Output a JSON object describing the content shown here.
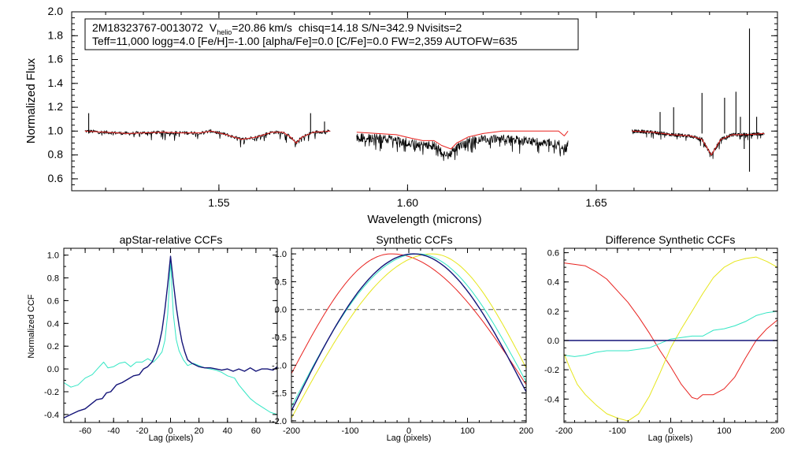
{
  "colors": {
    "black": "#000000",
    "model": "#e8221f",
    "cyan": "#33e6c4",
    "yellow": "#e6e61a",
    "navy": "#141478",
    "dash": "#555555"
  },
  "chart_data": [
    {
      "id": "spectrum",
      "type": "line",
      "title": "",
      "xlabel": "Wavelength (microns)",
      "ylabel": "Normalized Flux",
      "xlim": [
        1.511,
        1.698
      ],
      "ylim": [
        0.5,
        2.0
      ],
      "xticks": [
        1.55,
        1.6,
        1.65
      ],
      "xtick_labels": [
        "1.55",
        "1.60",
        "1.65"
      ],
      "yticks": [
        0.6,
        0.8,
        1.0,
        1.2,
        1.4,
        1.6,
        1.8,
        2.0
      ],
      "ytick_labels": [
        "0.6",
        "0.8",
        "1.0",
        "1.2",
        "1.4",
        "1.6",
        "1.8",
        "2.0"
      ],
      "annotation": {
        "star_id": "2M18323767-0013072",
        "vhelio_prefix": "V",
        "vhelio_sub": "helio",
        "vhelio_value": "=20.86 km/s",
        "stats": "chisq=14.18  S/N=342.9  Nvisits=2",
        "line2": "Teff=11,000 logg=4.0 [Fe/H]=-1.00 [alpha/Fe]=0.0 [C/Fe]=0.0 FW=2,359 AUTOFW=635"
      },
      "chips": [
        [
          1.5145,
          1.5795
        ],
        [
          1.5865,
          1.6425
        ],
        [
          1.6595,
          1.6945
        ]
      ],
      "series": [
        {
          "name": "observed",
          "color": "#000000"
        },
        {
          "name": "model",
          "color": "#e8221f",
          "points": [
            [
              1.5145,
              1.0
            ],
            [
              1.52,
              0.99
            ],
            [
              1.526,
              0.98
            ],
            [
              1.53,
              0.985
            ],
            [
              1.535,
              0.99
            ],
            [
              1.54,
              0.985
            ],
            [
              1.545,
              0.985
            ],
            [
              1.548,
              1.0
            ],
            [
              1.552,
              0.97
            ],
            [
              1.556,
              0.93
            ],
            [
              1.56,
              0.95
            ],
            [
              1.564,
              0.99
            ],
            [
              1.567,
              0.99
            ],
            [
              1.569,
              0.95
            ],
            [
              1.5705,
              0.9
            ],
            [
              1.572,
              0.95
            ],
            [
              1.575,
              0.99
            ],
            [
              1.5795,
              1.0
            ],
            [
              1.5865,
              0.99
            ],
            [
              1.592,
              0.98
            ],
            [
              1.597,
              0.97
            ],
            [
              1.601,
              0.94
            ],
            [
              1.604,
              0.92
            ],
            [
              1.607,
              0.92
            ],
            [
              1.609,
              0.88
            ],
            [
              1.6115,
              0.85
            ],
            [
              1.613,
              0.9
            ],
            [
              1.616,
              0.95
            ],
            [
              1.62,
              0.98
            ],
            [
              1.625,
              1.0
            ],
            [
              1.63,
              1.0
            ],
            [
              1.635,
              1.0
            ],
            [
              1.64,
              1.0
            ],
            [
              1.6415,
              0.96
            ],
            [
              1.6425,
              1.0
            ],
            [
              1.6595,
              1.0
            ],
            [
              1.665,
              0.99
            ],
            [
              1.67,
              0.97
            ],
            [
              1.675,
              0.96
            ],
            [
              1.678,
              0.93
            ],
            [
              1.6805,
              0.8
            ],
            [
              1.683,
              0.93
            ],
            [
              1.686,
              0.97
            ],
            [
              1.69,
              0.97
            ],
            [
              1.6945,
              0.98
            ]
          ]
        }
      ],
      "emission_spikes": [
        [
          1.5155,
          1.15
        ],
        [
          1.5743,
          1.15
        ],
        [
          1.578,
          1.08
        ],
        [
          1.6669,
          1.16
        ],
        [
          1.6705,
          1.2
        ],
        [
          1.678,
          1.32
        ],
        [
          1.684,
          1.28
        ],
        [
          1.687,
          1.33
        ],
        [
          1.6882,
          1.12
        ],
        [
          1.6906,
          1.86
        ],
        [
          1.6925,
          1.12
        ]
      ],
      "absorption_spikes": [
        [
          1.6906,
          0.66
        ],
        [
          1.6892,
          0.85
        ]
      ]
    },
    {
      "id": "apstar-ccf",
      "type": "line",
      "title": "apStar-relative CCFs",
      "xlabel": "Lag (pixels)",
      "ylabel": "Normalized CCF",
      "xlim": [
        -75,
        75
      ],
      "ylim": [
        -0.47,
        1.06
      ],
      "xticks": [
        -60,
        -40,
        -20,
        0,
        20,
        40,
        60
      ],
      "xtick_labels": [
        "-60",
        "-40",
        "-20",
        "0",
        "20",
        "40",
        "60"
      ],
      "yticks": [
        -0.4,
        -0.2,
        0.0,
        0.2,
        0.4,
        0.6,
        0.8,
        1.0
      ],
      "ytick_labels": [
        "-0.4",
        "-0.2",
        "0.0",
        "0.2",
        "0.4",
        "0.6",
        "0.8",
        "1.0"
      ],
      "series": [
        {
          "name": "cyan",
          "color": "#33e6c4",
          "points": [
            [
              -75,
              -0.12
            ],
            [
              -70,
              -0.16
            ],
            [
              -65,
              -0.14
            ],
            [
              -60,
              -0.08
            ],
            [
              -55,
              -0.05
            ],
            [
              -50,
              0.02
            ],
            [
              -47,
              0.06
            ],
            [
              -44,
              0.01
            ],
            [
              -40,
              0.02
            ],
            [
              -36,
              0.05
            ],
            [
              -32,
              0.06
            ],
            [
              -28,
              0.02
            ],
            [
              -24,
              0.06
            ],
            [
              -20,
              0.06
            ],
            [
              -16,
              0.09
            ],
            [
              -12,
              0.06
            ],
            [
              -9,
              0.1
            ],
            [
              -6,
              0.15
            ],
            [
              -4,
              0.25
            ],
            [
              -2,
              0.48
            ],
            [
              -1,
              0.7
            ],
            [
              0,
              0.97
            ],
            [
              1,
              0.7
            ],
            [
              2,
              0.48
            ],
            [
              4,
              0.26
            ],
            [
              6,
              0.16
            ],
            [
              9,
              0.08
            ],
            [
              12,
              0.03
            ],
            [
              16,
              0.05
            ],
            [
              20,
              0.03
            ],
            [
              24,
              0.01
            ],
            [
              28,
              0.0
            ],
            [
              32,
              -0.01
            ],
            [
              36,
              -0.03
            ],
            [
              40,
              -0.06
            ],
            [
              45,
              -0.08
            ],
            [
              48,
              -0.14
            ],
            [
              52,
              -0.2
            ],
            [
              56,
              -0.26
            ],
            [
              60,
              -0.3
            ],
            [
              65,
              -0.34
            ],
            [
              70,
              -0.38
            ],
            [
              75,
              -0.4
            ]
          ]
        },
        {
          "name": "navy",
          "color": "#141478",
          "points": [
            [
              -75,
              -0.43
            ],
            [
              -70,
              -0.4
            ],
            [
              -65,
              -0.37
            ],
            [
              -60,
              -0.35
            ],
            [
              -56,
              -0.31
            ],
            [
              -52,
              -0.27
            ],
            [
              -48,
              -0.26
            ],
            [
              -45,
              -0.21
            ],
            [
              -42,
              -0.2
            ],
            [
              -38,
              -0.14
            ],
            [
              -34,
              -0.12
            ],
            [
              -30,
              -0.09
            ],
            [
              -26,
              -0.06
            ],
            [
              -22,
              -0.05
            ],
            [
              -19,
              0.0
            ],
            [
              -16,
              0.02
            ],
            [
              -13,
              0.06
            ],
            [
              -10,
              0.14
            ],
            [
              -8,
              0.22
            ],
            [
              -6,
              0.34
            ],
            [
              -4,
              0.52
            ],
            [
              -2,
              0.74
            ],
            [
              0,
              0.99
            ],
            [
              2,
              0.76
            ],
            [
              4,
              0.55
            ],
            [
              6,
              0.38
            ],
            [
              8,
              0.24
            ],
            [
              10,
              0.15
            ],
            [
              12,
              0.08
            ],
            [
              15,
              0.05
            ],
            [
              20,
              0.02
            ],
            [
              24,
              0.01
            ],
            [
              28,
              0.01
            ],
            [
              32,
              0.0
            ],
            [
              36,
              -0.01
            ],
            [
              40,
              0.0
            ],
            [
              44,
              -0.02
            ],
            [
              48,
              0.0
            ],
            [
              52,
              -0.02
            ],
            [
              56,
              0.01
            ],
            [
              60,
              -0.02
            ],
            [
              64,
              0.0
            ],
            [
              68,
              0.0
            ],
            [
              72,
              -0.01
            ],
            [
              75,
              0.02
            ]
          ]
        }
      ]
    },
    {
      "id": "synthetic-ccf",
      "type": "line",
      "title": "Synthetic CCFs",
      "xlabel": "Lag (pixels)",
      "ylabel": "",
      "xlim": [
        -200,
        200
      ],
      "ylim": [
        -2.03,
        1.1
      ],
      "xticks": [
        -200,
        -100,
        0,
        100,
        200
      ],
      "xtick_labels": [
        "-200",
        "-100",
        "0",
        "100",
        "200"
      ],
      "yticks": [
        -2.0,
        -1.5,
        -1.0,
        -0.5,
        0.0,
        0.5,
        1.0
      ],
      "ytick_labels": [
        "-2.0",
        "-1.5",
        "-1.0",
        "-0.5",
        "0.0",
        "0.5",
        "1.0"
      ],
      "dashed_zero": true,
      "series": [
        {
          "name": "red",
          "color": "#e8221f",
          "peak": -30,
          "bottom": -1.15,
          "top": 1.0,
          "right_end": -1.35
        },
        {
          "name": "yellow",
          "color": "#e6e61a",
          "peak": 40,
          "bottom": -1.95,
          "top": 1.0,
          "right_end": -1.05
        },
        {
          "name": "cyan",
          "color": "#33e6c4",
          "peak": 15,
          "bottom": -1.75,
          "top": 1.0,
          "right_end": -1.3
        },
        {
          "name": "navy",
          "color": "#141478",
          "peak": 8,
          "bottom": -1.82,
          "top": 1.0,
          "right_end": -1.48
        }
      ]
    },
    {
      "id": "difference-ccf",
      "type": "line",
      "title": "Difference Synthetic CCFs",
      "xlabel": "Lag (pixels)",
      "ylabel": "",
      "xlim": [
        -200,
        200
      ],
      "ylim": [
        -0.56,
        0.63
      ],
      "xticks": [
        -200,
        -100,
        0,
        100,
        200
      ],
      "xtick_labels": [
        "-200",
        "-100",
        "0",
        "100",
        "200"
      ],
      "yticks": [
        -0.4,
        -0.2,
        0.0,
        0.2,
        0.4,
        0.6
      ],
      "ytick_labels": [
        "-0.4",
        "-0.2",
        "0.0",
        "0.2",
        "0.4",
        "0.6"
      ],
      "dashed_zero": true,
      "series": [
        {
          "name": "red",
          "color": "#e8221f",
          "points": [
            [
              -200,
              0.53
            ],
            [
              -180,
              0.52
            ],
            [
              -160,
              0.51
            ],
            [
              -140,
              0.47
            ],
            [
              -120,
              0.42
            ],
            [
              -100,
              0.34
            ],
            [
              -80,
              0.26
            ],
            [
              -60,
              0.16
            ],
            [
              -40,
              0.05
            ],
            [
              -20,
              -0.07
            ],
            [
              0,
              -0.18
            ],
            [
              20,
              -0.3
            ],
            [
              40,
              -0.39
            ],
            [
              50,
              -0.4
            ],
            [
              60,
              -0.37
            ],
            [
              80,
              -0.37
            ],
            [
              100,
              -0.33
            ],
            [
              120,
              -0.25
            ],
            [
              140,
              -0.12
            ],
            [
              160,
              0.0
            ],
            [
              180,
              0.08
            ],
            [
              200,
              0.14
            ]
          ]
        },
        {
          "name": "yellow",
          "color": "#e6e61a",
          "points": [
            [
              -200,
              -0.09
            ],
            [
              -190,
              -0.18
            ],
            [
              -175,
              -0.3
            ],
            [
              -160,
              -0.37
            ],
            [
              -140,
              -0.44
            ],
            [
              -120,
              -0.5
            ],
            [
              -100,
              -0.53
            ],
            [
              -80,
              -0.55
            ],
            [
              -60,
              -0.5
            ],
            [
              -40,
              -0.38
            ],
            [
              -20,
              -0.22
            ],
            [
              0,
              -0.05
            ],
            [
              20,
              0.08
            ],
            [
              40,
              0.2
            ],
            [
              60,
              0.32
            ],
            [
              80,
              0.43
            ],
            [
              100,
              0.5
            ],
            [
              120,
              0.54
            ],
            [
              140,
              0.56
            ],
            [
              160,
              0.57
            ],
            [
              180,
              0.54
            ],
            [
              200,
              0.5
            ]
          ]
        },
        {
          "name": "cyan",
          "color": "#33e6c4",
          "points": [
            [
              -200,
              -0.1
            ],
            [
              -180,
              -0.11
            ],
            [
              -160,
              -0.1
            ],
            [
              -140,
              -0.08
            ],
            [
              -120,
              -0.07
            ],
            [
              -100,
              -0.07
            ],
            [
              -80,
              -0.07
            ],
            [
              -60,
              -0.06
            ],
            [
              -40,
              -0.05
            ],
            [
              -20,
              -0.02
            ],
            [
              0,
              0.01
            ],
            [
              20,
              0.02
            ],
            [
              40,
              0.03
            ],
            [
              60,
              0.03
            ],
            [
              70,
              0.05
            ],
            [
              80,
              0.07
            ],
            [
              100,
              0.08
            ],
            [
              120,
              0.1
            ],
            [
              140,
              0.13
            ],
            [
              160,
              0.17
            ],
            [
              180,
              0.19
            ],
            [
              200,
              0.2
            ]
          ]
        },
        {
          "name": "navy",
          "color": "#141478",
          "points": [
            [
              -200,
              0.0
            ],
            [
              200,
              0.0
            ]
          ]
        }
      ]
    }
  ]
}
